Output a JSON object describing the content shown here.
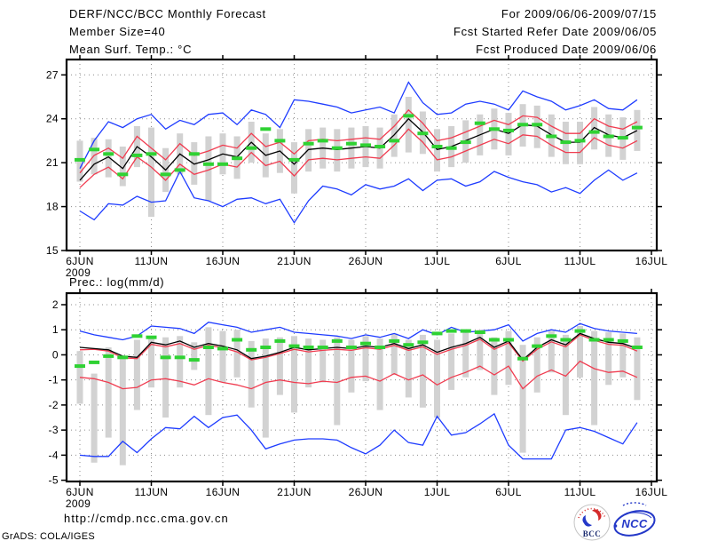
{
  "header": {
    "title": "DERF/NCC/BCC Monthly Forecast",
    "member_size": "Member Size=40",
    "for_range": "For 2009/06/06-2009/07/15",
    "fcst_started": "Fcst Started Refer Date 2009/06/05",
    "fcst_produced": "Fcst Produced Date 2009/06/06"
  },
  "footer": {
    "url": "http://cmdp.ncc.cma.gov.cn",
    "credit": "GrADS: COLA/IGES",
    "logo_bcc_label": "BCC",
    "logo_ncc_label": "NCC"
  },
  "colors": {
    "ensemble_line": "#1e3cff",
    "quartile_line": "#f03c50",
    "mean_line": "#000000",
    "observation": "#2fd233",
    "spread_bar": "#d2d2d2",
    "grid": "#8c8c8c",
    "frame": "#000000",
    "logo_blue": "#2438c8",
    "logo_red": "#d42a2a",
    "logo_navy": "#1a2a6e"
  },
  "chart_data": [
    {
      "type": "line",
      "title": "Mean Surf. Temp.: °C",
      "x_tick_labels": [
        "6JUN",
        "11JUN",
        "16JUN",
        "21JUN",
        "26JUN",
        "1JUL",
        "6JUL",
        "11JUL",
        "16JUL"
      ],
      "x_tick_days": [
        0,
        5,
        10,
        15,
        20,
        25,
        30,
        35,
        40
      ],
      "x_year_label": "2009",
      "yticks": [
        15,
        18,
        21,
        24,
        27
      ],
      "ylim": [
        15,
        28
      ],
      "grid": true,
      "legend": "none",
      "band": {
        "name": "ensemble-spread-bar",
        "low": [
          19.7,
          20.2,
          20.0,
          19.4,
          20.7,
          17.3,
          19.0,
          20.2,
          19.5,
          18.4,
          20.2,
          19.9,
          21.0,
          20.0,
          20.3,
          18.9,
          20.4,
          20.6,
          20.4,
          20.6,
          20.7,
          20.6,
          21.4,
          21.7,
          21.6,
          20.4,
          20.7,
          21.0,
          21.5,
          21.9,
          21.5,
          22.1,
          22.0,
          21.4,
          20.9,
          20.9,
          21.9,
          21.4,
          21.2,
          21.8
        ],
        "high": [
          22.5,
          22.7,
          22.6,
          22.1,
          23.5,
          23.4,
          22.0,
          23.0,
          22.4,
          22.8,
          23.0,
          22.8,
          23.8,
          23.0,
          23.3,
          22.4,
          23.3,
          23.4,
          23.3,
          23.4,
          23.5,
          23.4,
          24.3,
          25.5,
          24.5,
          23.3,
          23.5,
          23.9,
          24.3,
          24.7,
          24.4,
          25.0,
          24.9,
          24.3,
          23.8,
          23.8,
          24.8,
          24.3,
          24.1,
          24.6
        ]
      },
      "series": [
        {
          "name": "ensemble-max",
          "style": "line",
          "color_key": "ensemble_line",
          "values": [
            20.6,
            22.5,
            23.8,
            23.4,
            24.0,
            24.3,
            23.3,
            23.9,
            23.6,
            24.3,
            24.4,
            23.6,
            24.6,
            24.3,
            23.4,
            25.3,
            25.2,
            25.0,
            24.8,
            24.4,
            24.6,
            24.8,
            24.4,
            26.5,
            25.1,
            24.3,
            24.4,
            25.0,
            25.2,
            25.0,
            24.6,
            25.9,
            25.5,
            25.2,
            24.6,
            24.9,
            25.3,
            24.7,
            24.6,
            25.3
          ]
        },
        {
          "name": "upper-quartile",
          "style": "line",
          "color_key": "quartile_line",
          "values": [
            20.3,
            21.5,
            22.0,
            21.3,
            22.8,
            22.0,
            21.2,
            22.3,
            21.5,
            21.8,
            22.2,
            22.0,
            23.0,
            22.1,
            22.4,
            21.6,
            22.5,
            22.6,
            22.5,
            22.6,
            22.7,
            22.6,
            23.5,
            24.6,
            23.7,
            22.5,
            22.7,
            23.1,
            23.5,
            23.9,
            23.6,
            24.2,
            24.1,
            23.5,
            23.0,
            23.0,
            24.0,
            23.5,
            23.3,
            23.8
          ]
        },
        {
          "name": "lower-quartile",
          "style": "line",
          "color_key": "quartile_line",
          "values": [
            19.3,
            20.2,
            20.7,
            19.9,
            21.4,
            20.7,
            19.8,
            20.9,
            20.2,
            20.5,
            20.9,
            20.7,
            21.7,
            20.8,
            21.1,
            20.1,
            21.2,
            21.3,
            21.2,
            21.3,
            21.4,
            21.3,
            22.2,
            23.3,
            22.4,
            21.2,
            21.4,
            21.8,
            22.2,
            22.6,
            22.3,
            22.9,
            22.8,
            22.2,
            21.7,
            21.7,
            22.7,
            22.2,
            22.0,
            22.5
          ]
        },
        {
          "name": "ensemble-min",
          "style": "line",
          "color_key": "ensemble_line",
          "values": [
            17.7,
            17.1,
            18.2,
            18.1,
            18.7,
            18.3,
            18.4,
            20.4,
            18.6,
            18.4,
            18.0,
            18.5,
            18.6,
            18.2,
            18.5,
            16.9,
            18.4,
            19.4,
            19.2,
            18.8,
            19.5,
            19.2,
            19.4,
            19.9,
            19.1,
            19.8,
            19.9,
            19.4,
            19.7,
            20.4,
            20.0,
            19.7,
            19.5,
            19.0,
            19.3,
            18.9,
            19.8,
            20.5,
            19.8,
            20.3
          ]
        },
        {
          "name": "ensemble-mean",
          "style": "line",
          "color_key": "mean_line",
          "values": [
            19.8,
            20.9,
            21.4,
            20.6,
            22.1,
            21.4,
            20.5,
            21.6,
            20.9,
            21.2,
            21.6,
            21.4,
            22.4,
            21.5,
            21.8,
            20.9,
            21.9,
            22.0,
            21.9,
            22.0,
            22.1,
            22.0,
            22.9,
            24.0,
            23.1,
            21.9,
            22.1,
            22.5,
            22.9,
            23.3,
            23.0,
            23.6,
            23.5,
            22.9,
            22.4,
            22.4,
            23.4,
            22.9,
            22.7,
            23.2
          ]
        },
        {
          "name": "observation-dash",
          "style": "marks",
          "color_key": "observation",
          "values": [
            21.2,
            21.9,
            21.6,
            20.2,
            21.5,
            21.6,
            20.2,
            20.5,
            21.6,
            20.9,
            20.9,
            21.3,
            22.0,
            23.3,
            22.5,
            21.2,
            22.3,
            22.5,
            22.0,
            22.3,
            22.2,
            22.1,
            22.5,
            24.2,
            23.0,
            22.1,
            22.0,
            22.4,
            23.7,
            23.3,
            23.2,
            23.6,
            23.6,
            22.8,
            22.4,
            22.5,
            23.1,
            22.8,
            22.7,
            23.4
          ]
        }
      ]
    },
    {
      "type": "line",
      "title": "Prec.: log(mm/d)",
      "x_tick_labels": [
        "6JUN",
        "11JUN",
        "16JUN",
        "21JUN",
        "26JUN",
        "1JUL",
        "6JUL",
        "11JUL",
        "16JUL"
      ],
      "x_tick_days": [
        0,
        5,
        10,
        15,
        20,
        25,
        30,
        35,
        40
      ],
      "x_year_label": "2009",
      "yticks": [
        -5,
        -4,
        -3,
        -2,
        -1,
        0,
        1,
        2
      ],
      "ylim": [
        -5,
        2.5
      ],
      "grid": true,
      "legend": "none",
      "band": {
        "name": "ensemble-spread-bar",
        "low": [
          -1.95,
          -4.3,
          -3.3,
          -4.4,
          -2.2,
          -1.3,
          -2.5,
          -1.3,
          -0.6,
          -2.4,
          -1.1,
          -0.9,
          -2.1,
          -3.3,
          -1.6,
          -2.3,
          -1.3,
          -1.1,
          -2.8,
          -1.5,
          -1.05,
          -2.2,
          -0.8,
          -1.7,
          -2.1,
          -2.5,
          -1.4,
          -0.9,
          -0.6,
          -1.6,
          -1.2,
          -3.9,
          -1.5,
          -0.7,
          -2.4,
          -0.9,
          -2.8,
          -1.2,
          -0.9,
          -1.8
        ],
        "high": [
          0.15,
          -0.75,
          0.3,
          -0.05,
          0.6,
          0.75,
          0.7,
          0.75,
          0.5,
          1.1,
          0.95,
          1.0,
          0.55,
          0.65,
          0.7,
          0.75,
          0.65,
          0.6,
          0.7,
          0.6,
          0.75,
          0.65,
          0.85,
          0.6,
          0.8,
          0.6,
          0.85,
          0.95,
          1.0,
          0.7,
          0.95,
          0.4,
          0.7,
          0.95,
          0.8,
          1.15,
          0.95,
          0.9,
          0.85,
          0.7
        ]
      },
      "series": [
        {
          "name": "ensemble-max",
          "style": "line",
          "color_key": "ensemble_line",
          "values": [
            0.95,
            0.8,
            0.7,
            0.6,
            0.75,
            1.15,
            1.1,
            1.05,
            0.85,
            1.3,
            1.2,
            1.1,
            0.9,
            1.0,
            1.1,
            0.9,
            0.85,
            0.8,
            0.75,
            0.65,
            0.8,
            0.7,
            0.85,
            0.65,
            1.0,
            0.8,
            1.1,
            0.9,
            0.95,
            1.0,
            1.2,
            0.55,
            0.85,
            1.0,
            0.9,
            1.25,
            1.05,
            0.95,
            0.9,
            0.85
          ]
        },
        {
          "name": "upper-quartile",
          "style": "line",
          "color_key": "quartile_line",
          "values": [
            0.2,
            0.22,
            0.15,
            -0.12,
            -0.15,
            0.42,
            0.32,
            0.45,
            0.22,
            0.38,
            0.28,
            0.12,
            -0.2,
            -0.1,
            0.05,
            0.22,
            0.12,
            0.18,
            0.22,
            0.18,
            0.28,
            0.22,
            0.38,
            0.18,
            0.32,
            0.02,
            0.22,
            0.38,
            0.62,
            0.22,
            0.48,
            -0.25,
            0.22,
            0.52,
            0.32,
            0.8,
            0.58,
            0.42,
            0.38,
            0.15
          ]
        },
        {
          "name": "lower-quartile",
          "style": "line",
          "color_key": "quartile_line",
          "values": [
            -0.9,
            -0.95,
            -1.1,
            -1.35,
            -1.3,
            -1.0,
            -0.95,
            -1.05,
            -1.2,
            -0.95,
            -1.1,
            -1.2,
            -1.35,
            -1.1,
            -1.0,
            -1.1,
            -1.15,
            -1.05,
            -1.1,
            -0.9,
            -0.85,
            -1.05,
            -0.75,
            -1.0,
            -0.8,
            -1.2,
            -0.9,
            -0.7,
            -0.45,
            -0.8,
            -0.45,
            -1.35,
            -0.85,
            -0.6,
            -0.85,
            -0.25,
            -0.55,
            -0.7,
            -0.65,
            -0.9
          ]
        },
        {
          "name": "ensemble-min",
          "style": "line",
          "color_key": "ensemble_line",
          "values": [
            -4.0,
            -4.05,
            -4.05,
            -3.45,
            -3.9,
            -3.35,
            -2.9,
            -2.95,
            -2.45,
            -2.9,
            -2.5,
            -2.4,
            -3.0,
            -3.75,
            -3.55,
            -3.4,
            -3.35,
            -3.35,
            -3.4,
            -3.7,
            -3.95,
            -3.6,
            -3.0,
            -3.5,
            -3.6,
            -2.45,
            -3.2,
            -3.1,
            -2.75,
            -2.35,
            -3.6,
            -4.15,
            -4.15,
            -4.15,
            -3.0,
            -2.9,
            -3.05,
            -3.3,
            -3.55,
            -2.7
          ]
        },
        {
          "name": "ensemble-mean",
          "style": "line",
          "color_key": "mean_line",
          "values": [
            0.3,
            0.25,
            0.2,
            -0.05,
            -0.1,
            0.5,
            0.4,
            0.55,
            0.3,
            0.45,
            0.35,
            0.2,
            -0.15,
            -0.05,
            0.1,
            0.3,
            0.2,
            0.25,
            0.3,
            0.25,
            0.35,
            0.3,
            0.45,
            0.25,
            0.4,
            0.1,
            0.3,
            0.45,
            0.7,
            0.3,
            0.55,
            -0.2,
            0.3,
            0.6,
            0.4,
            0.85,
            0.65,
            0.5,
            0.45,
            0.25
          ]
        },
        {
          "name": "observation-dash",
          "style": "marks",
          "color_key": "observation",
          "values": [
            -0.45,
            -0.3,
            -0.05,
            -0.1,
            0.75,
            0.7,
            -0.1,
            -0.1,
            -0.2,
            0.3,
            0.25,
            0.6,
            0.2,
            0.3,
            0.55,
            0.35,
            0.3,
            0.3,
            0.55,
            0.3,
            0.45,
            0.3,
            0.55,
            0.4,
            0.5,
            0.85,
            0.95,
            0.95,
            0.9,
            0.6,
            0.6,
            -0.15,
            0.35,
            0.75,
            0.6,
            0.95,
            0.6,
            0.6,
            0.55,
            0.3
          ]
        }
      ]
    }
  ]
}
